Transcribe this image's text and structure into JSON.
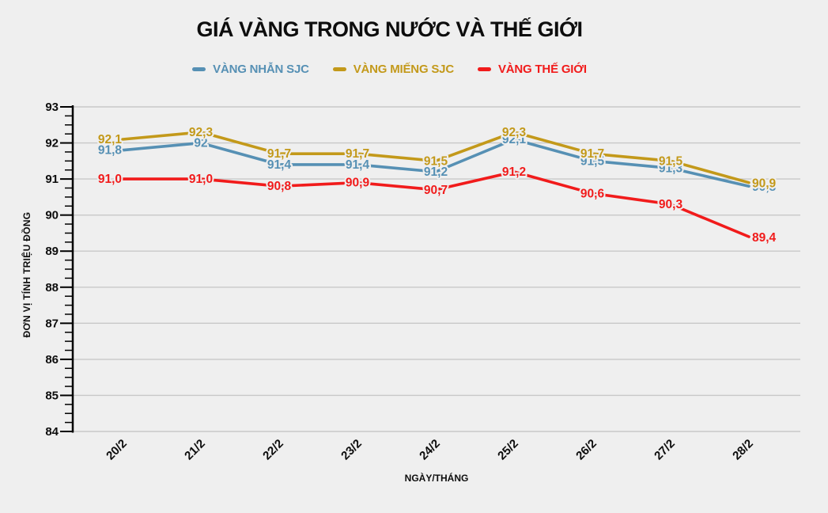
{
  "chart_data": {
    "type": "line",
    "title": "GIÁ VÀNG TRONG NƯỚC VÀ THẾ GIỚI",
    "xlabel": "NGÀY/THÁNG",
    "ylabel": "ĐƠN VỊ TÍNH TRIỆU ĐỒNG",
    "categories": [
      "20/2",
      "21/2",
      "22/2",
      "23/2",
      "24/2",
      "25/2",
      "26/2",
      "27/2",
      "28/2"
    ],
    "series": [
      {
        "name": "VÀNG NHẪN SJC",
        "color": "#5690b4",
        "values": [
          91.8,
          92,
          91.4,
          91.4,
          91.2,
          92.1,
          91.5,
          91.3,
          90.8
        ],
        "labels": [
          "91,8",
          "92",
          "91,4",
          "91,4",
          "91,2",
          "92,1",
          "91,5",
          "91,3",
          "90,8"
        ]
      },
      {
        "name": "VÀNG MIẾNG SJC",
        "color": "#c3991a",
        "values": [
          92.1,
          92.3,
          91.7,
          91.7,
          91.5,
          92.3,
          91.7,
          91.5,
          90.9
        ],
        "labels": [
          "92,1",
          "92,3",
          "91,7",
          "91,7",
          "91,5",
          "92,3",
          "91,7",
          "91,5",
          "90,9"
        ]
      },
      {
        "name": "VÀNG THẾ GIỚI",
        "color": "#f11b1b",
        "values": [
          91.0,
          91.0,
          90.8,
          90.9,
          90.7,
          91.2,
          90.6,
          90.3,
          89.4
        ],
        "labels": [
          "91,0",
          "91,0",
          "90,8",
          "90,9",
          "90,7",
          "91,2",
          "90,6",
          "90,3",
          "89,4"
        ]
      }
    ],
    "ylim": [
      84,
      93
    ],
    "y_major_step": 1,
    "y_minor_step": 0.25,
    "grid": "horizontal",
    "legend_position": "top",
    "colors": {
      "background": "#efefef",
      "gridline": "#c8c8c8",
      "axis": "#000000",
      "text": "#0d0d0d"
    }
  }
}
